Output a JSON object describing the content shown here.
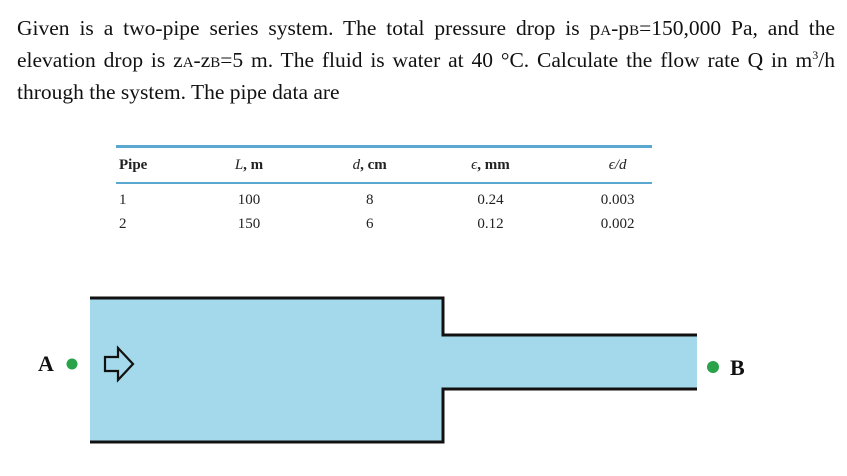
{
  "problem": {
    "seg1": "Given is a two-pipe series system. The total pressure drop is p",
    "sub_A1": "A",
    "seg2": "-p",
    "sub_B1": "B",
    "seg3": "=150,000 Pa, and the elevation drop is z",
    "sub_A2": "A",
    "seg4": "-z",
    "sub_B2": "B",
    "seg5": "=5 m. The fluid is water at 40 °C. Calculate the flow rate Q in m",
    "sup3": "3",
    "seg6": "/h through the system. The pipe data are"
  },
  "table": {
    "headers": {
      "pipe": "Pipe",
      "L_sym": "L",
      "L_unit": ", m",
      "d_sym": "d",
      "d_unit": ", cm",
      "eps_sym": "ϵ",
      "eps_unit": ", mm",
      "ratio": "ϵ/d"
    },
    "rows": [
      {
        "pipe": "1",
        "L": "100",
        "d": "8",
        "eps": "0.24",
        "ratio": "0.003"
      },
      {
        "pipe": "2",
        "L": "150",
        "d": "6",
        "eps": "0.12",
        "ratio": "0.002"
      }
    ]
  },
  "diagram": {
    "point_a": "A",
    "point_b": "B",
    "fluid_color": "#a3d9ea",
    "marker_color": "#2aa24a",
    "wall_color": "#111111",
    "flow_arrow_icon": "right-arrow-icon"
  }
}
